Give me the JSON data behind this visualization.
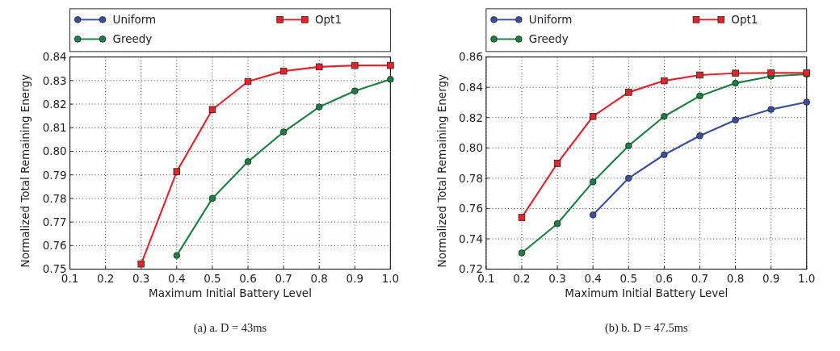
{
  "chart_data": [
    {
      "type": "line",
      "xlabel": "Maximum Initial Battery Level",
      "ylabel": "Normalized Total Remaining Energy",
      "annotations": [
        "(a) a. D = 43ms"
      ],
      "xlim": [
        0.1,
        1.0
      ],
      "ylim": [
        0.75,
        0.84
      ],
      "xticks": [
        0.1,
        0.2,
        0.3,
        0.4,
        0.5,
        0.6,
        0.7,
        0.8,
        0.9,
        {
          "value": 1.0,
          "label": "1.0"
        }
      ],
      "yticks": [
        0.75,
        0.76,
        0.77,
        0.78,
        0.79,
        {
          "value": 0.8,
          "label": "0.80"
        },
        0.81,
        0.82,
        0.83,
        0.84
      ],
      "x": [
        0.3,
        0.4,
        0.5,
        0.6,
        0.7,
        0.8,
        0.9,
        1.0
      ],
      "grid": true,
      "legend": "top",
      "line_style": "solid",
      "series": [
        {
          "name": "Uniform",
          "color": "#3a4fa0",
          "marker": "circle",
          "values": [
            null,
            null,
            null,
            null,
            null,
            null,
            null,
            null
          ]
        },
        {
          "name": "Greedy",
          "color": "#1a8040",
          "marker": "circle",
          "values": [
            null,
            0.7558,
            0.78,
            0.7956,
            0.8082,
            0.8188,
            0.8256,
            0.8305
          ]
        },
        {
          "name": "Opt1",
          "color": "#e8222a",
          "marker": "square",
          "values": [
            0.7522,
            0.7914,
            0.8177,
            0.8296,
            0.834,
            0.8358,
            0.8364,
            0.8364
          ]
        }
      ]
    },
    {
      "type": "line",
      "xlabel": "Maximum Initial Battery Level",
      "ylabel": "Normalized Total Remaining Energy",
      "annotations": [
        "(b) b. D = 47.5ms"
      ],
      "xlim": [
        0.1,
        1.0
      ],
      "ylim": [
        0.72,
        0.86
      ],
      "xticks": [
        0.1,
        0.2,
        0.3,
        0.4,
        0.5,
        0.6,
        0.7,
        0.8,
        0.9,
        {
          "value": 1.0,
          "label": "1.0"
        }
      ],
      "yticks": [
        0.72,
        0.74,
        0.76,
        0.78,
        {
          "value": 0.8,
          "label": "0.80"
        },
        0.82,
        0.84,
        0.86
      ],
      "x": [
        0.2,
        0.3,
        0.4,
        0.5,
        0.6,
        0.7,
        0.8,
        0.9,
        1.0
      ],
      "grid": true,
      "legend": "top",
      "line_style": "solid",
      "series": [
        {
          "name": "Uniform",
          "color": "#3a4fa0",
          "marker": "circle",
          "values": [
            null,
            null,
            0.7558,
            0.78,
            0.7955,
            0.808,
            0.8184,
            0.8254,
            0.8302
          ]
        },
        {
          "name": "Greedy",
          "color": "#1a8040",
          "marker": "circle",
          "values": [
            0.7307,
            0.75,
            0.7776,
            0.8014,
            0.8208,
            0.8343,
            0.8427,
            0.8473,
            0.8486
          ]
        },
        {
          "name": "Opt1",
          "color": "#e8222a",
          "marker": "square",
          "values": [
            0.7541,
            0.7898,
            0.8208,
            0.8367,
            0.8443,
            0.8481,
            0.8493,
            0.8495,
            0.8495
          ]
        }
      ]
    }
  ]
}
